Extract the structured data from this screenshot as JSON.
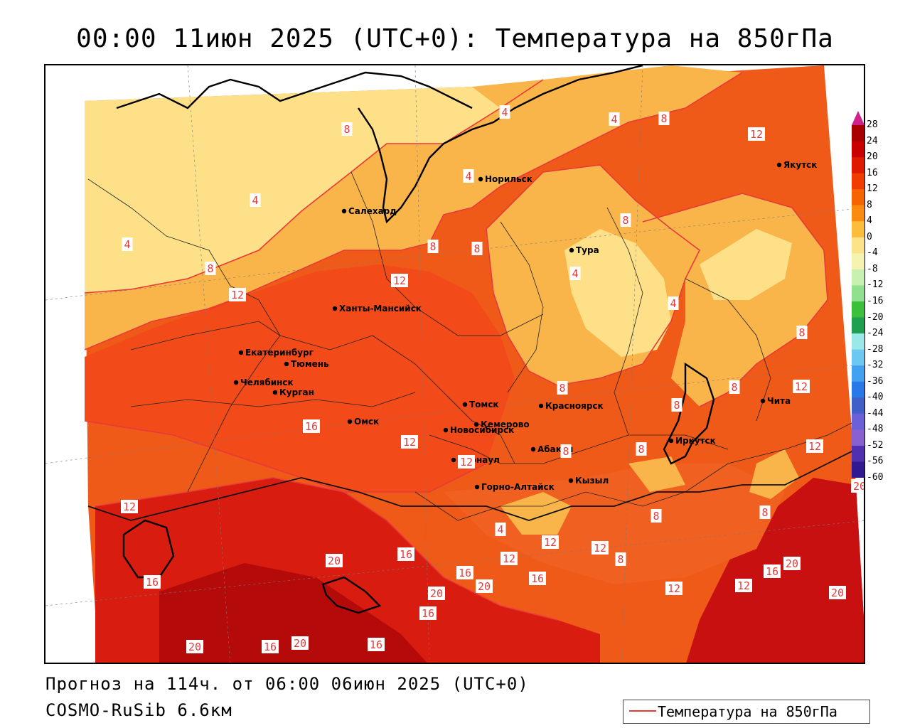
{
  "title": "00:00 11июн 2025 (UTC+0): Температура на 850гПа",
  "footer": {
    "forecast": "Прогноз на 114ч. от 06:00 06июн 2025 (UTC+0)",
    "model": "COSMO-RuSib 6.6км"
  },
  "legend": {
    "label": "Температура на 850гПа"
  },
  "colorbar": {
    "ticks": [
      "28",
      "24",
      "20",
      "16",
      "12",
      "8",
      "4",
      "0",
      "-4",
      "-8",
      "-12",
      "-16",
      "-20",
      "-24",
      "-28",
      "-32",
      "-36",
      "-40",
      "-44",
      "-48",
      "-52",
      "-56",
      "-60"
    ],
    "colors": [
      "#a80000",
      "#c80000",
      "#e01a00",
      "#f03c00",
      "#f56400",
      "#f98c10",
      "#fcbc3c",
      "#fde28a",
      "#f6f3b0",
      "#c8f0b0",
      "#90e090",
      "#3cc03c",
      "#1ea050",
      "#9ae8e8",
      "#6cc8f0",
      "#44a0f0",
      "#2878e8",
      "#4060c8",
      "#6a60d8",
      "#8860d0",
      "#5030b0",
      "#301890"
    ],
    "top_arrow": "#d0208c"
  },
  "cities": [
    {
      "name": "Норильск"
    },
    {
      "name": "Якутск"
    },
    {
      "name": "Салехард"
    },
    {
      "name": "Тура"
    },
    {
      "name": "Ханты-Мансийск"
    },
    {
      "name": "Екатеринбург"
    },
    {
      "name": "Тюмень"
    },
    {
      "name": "Челябинск"
    },
    {
      "name": "Курган"
    },
    {
      "name": "Омск"
    },
    {
      "name": "Новосибирск"
    },
    {
      "name": "Томск"
    },
    {
      "name": "Кемерово"
    },
    {
      "name": "Красноярск"
    },
    {
      "name": "Абакан"
    },
    {
      "name": "Барнаул"
    },
    {
      "name": "Горно-Алтайск"
    },
    {
      "name": "Кызыл"
    },
    {
      "name": "Иркутск"
    },
    {
      "name": "Чита"
    }
  ],
  "contour_labels": [
    "4",
    "8",
    "12",
    "16",
    "20"
  ]
}
